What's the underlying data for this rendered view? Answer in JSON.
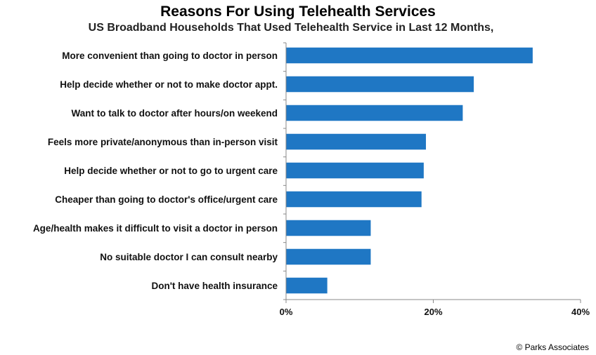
{
  "chart_data": {
    "type": "bar",
    "orientation": "horizontal",
    "title": "Reasons For Using Telehealth Services",
    "subtitle": "US Broadband Households That Used Telehealth Service in Last 12 Months,",
    "categories": [
      "More convenient than going to doctor in person",
      "Help decide whether or not to make doctor appt.",
      "Want to talk to doctor after hours/on weekend",
      "Feels more private/anonymous than in-person visit",
      "Help decide whether or not to go to urgent care",
      "Cheaper than going to doctor's office/urgent care",
      "Age/health makes it difficult to visit a doctor in person",
      "No suitable doctor I can consult nearby",
      "Don't have health insurance"
    ],
    "values": [
      33.5,
      25.5,
      24,
      19,
      18.7,
      18.4,
      11.5,
      11.5,
      5.6
    ],
    "xlim": [
      0,
      40
    ],
    "xticks": [
      0,
      20,
      40
    ],
    "xtick_labels": [
      "0%",
      "20%",
      "40%"
    ],
    "bar_color": "#1f77c4",
    "grid": false
  },
  "footer": {
    "credit": "© Parks Associates"
  }
}
